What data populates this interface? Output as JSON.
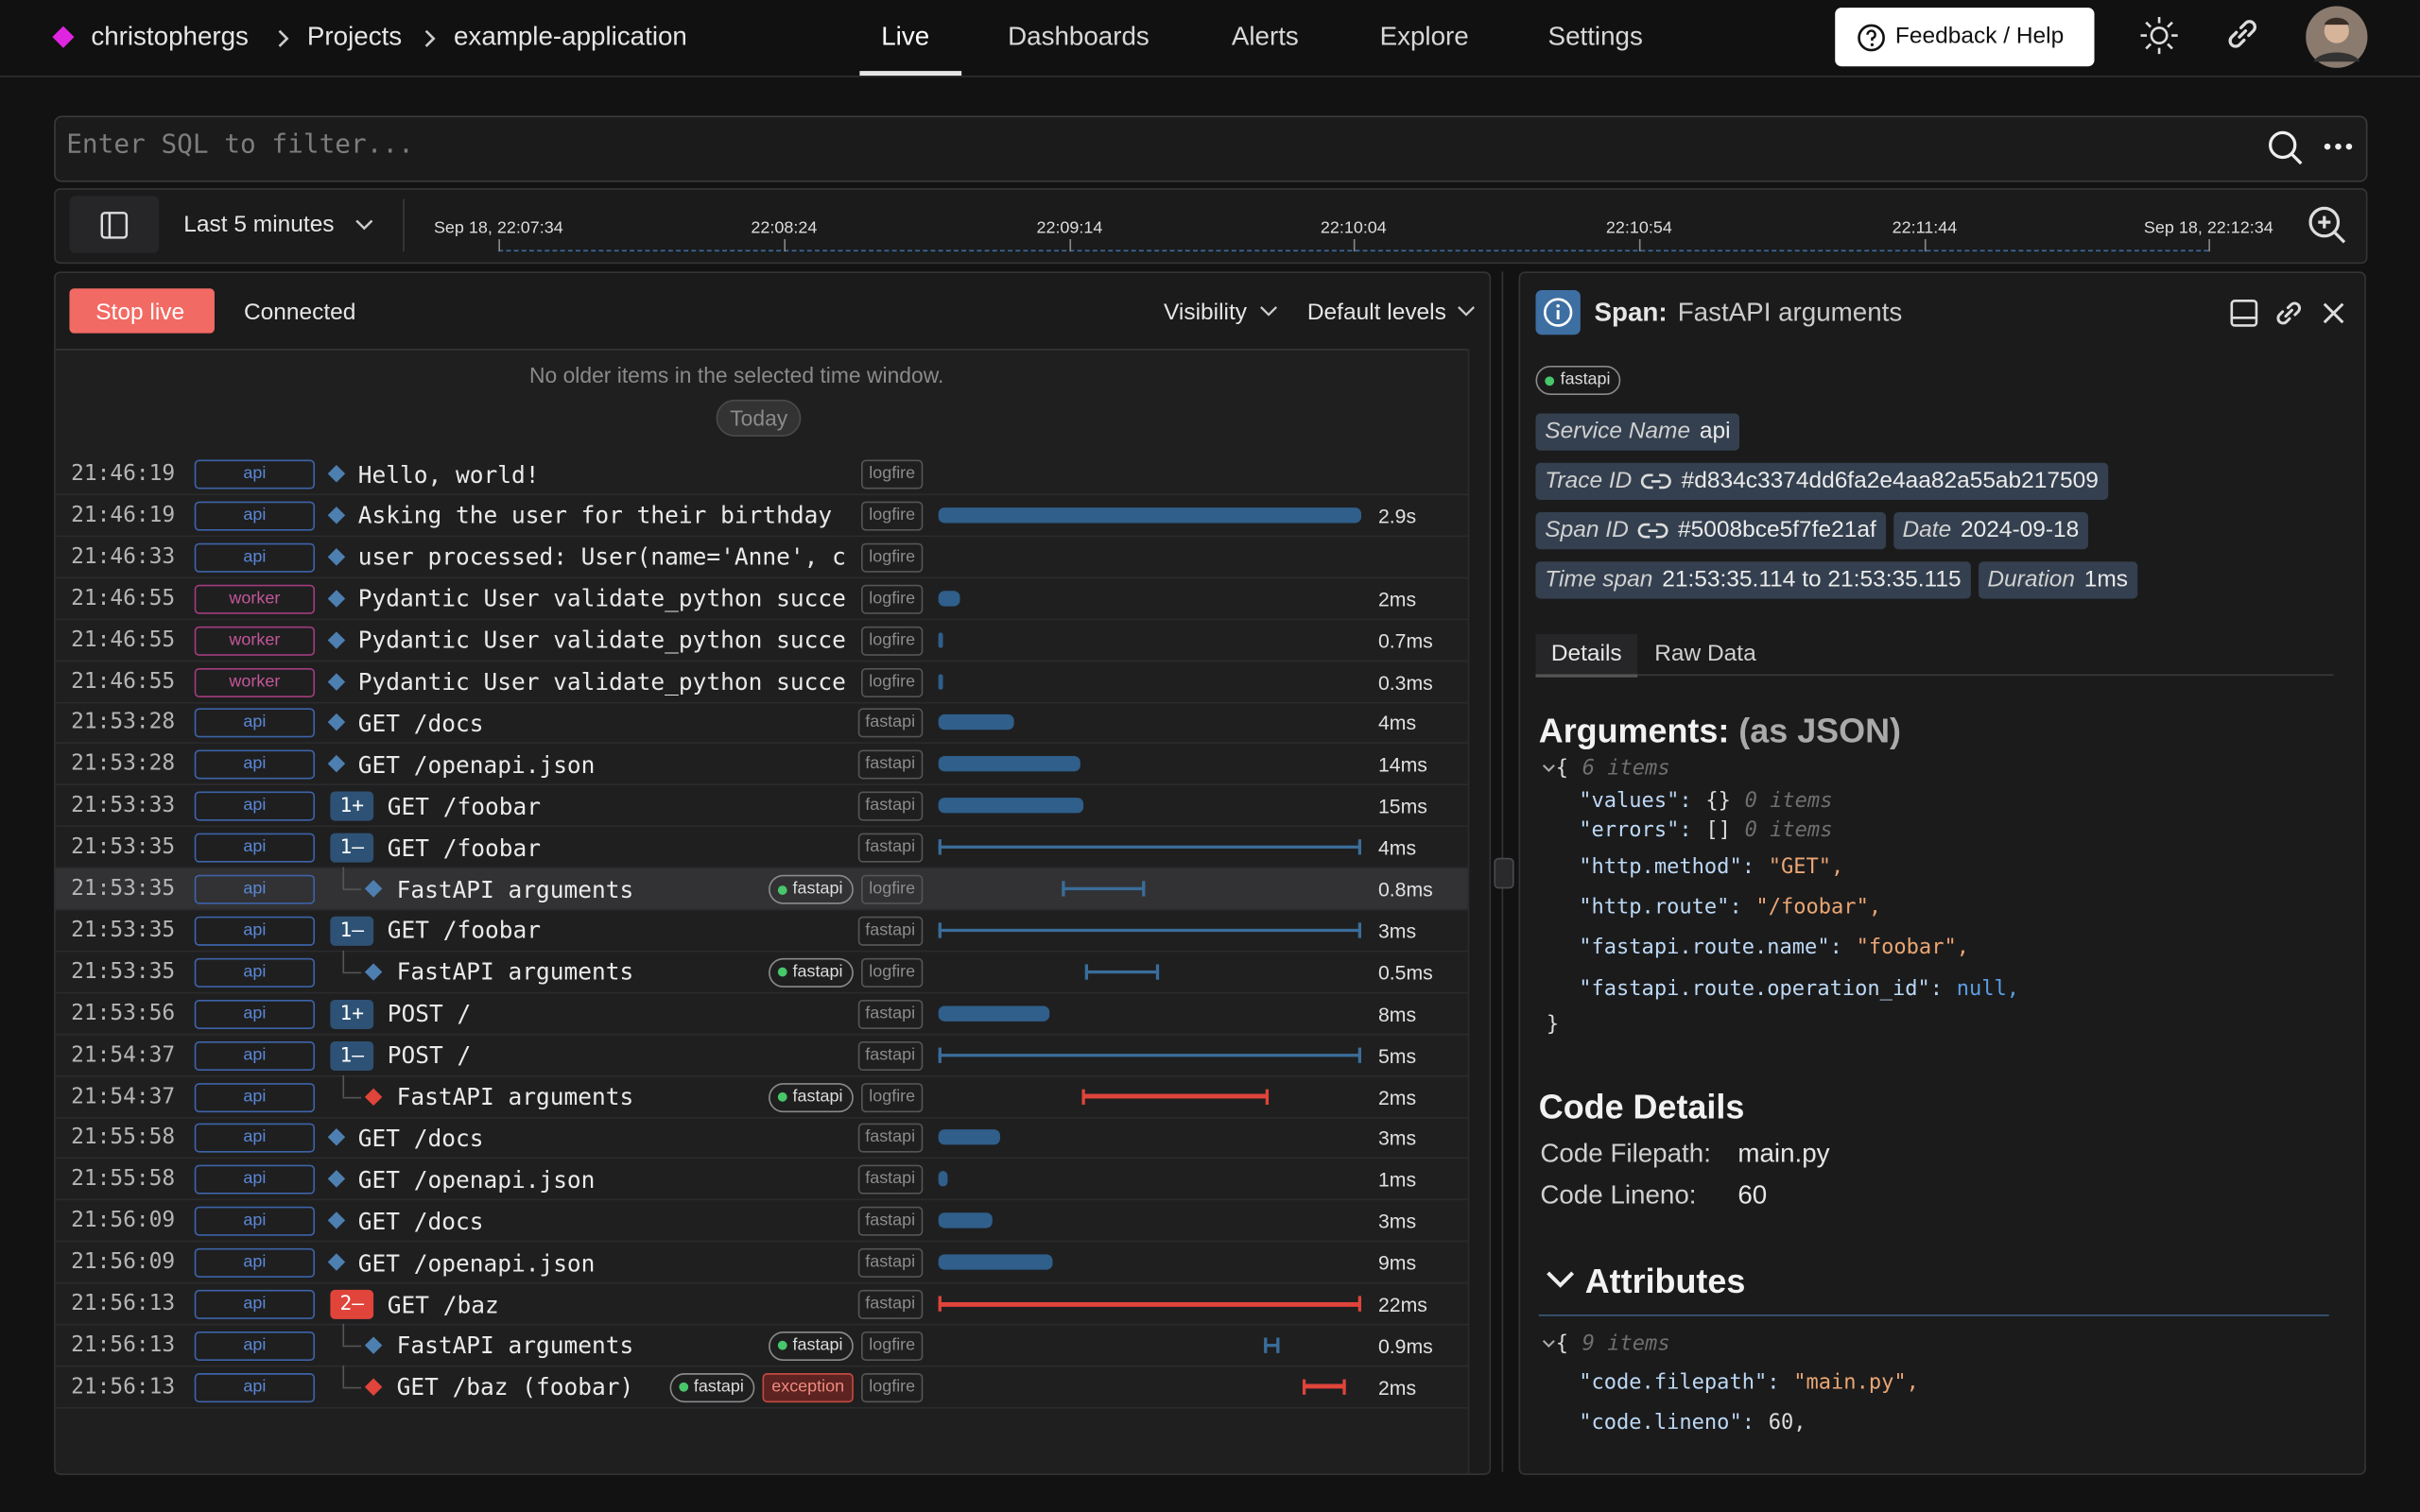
{
  "nav": {
    "org": "christophergs",
    "projects": "Projects",
    "app": "example-application",
    "tabs": [
      "Live",
      "Dashboards",
      "Alerts",
      "Explore",
      "Settings"
    ],
    "feedback": "Feedback / Help"
  },
  "query": {
    "placeholder": "Enter SQL to filter..."
  },
  "timeline": {
    "range": "Last 5 minutes",
    "ticks": [
      "Sep 18, 22:07:34",
      "22:08:24",
      "22:09:14",
      "22:10:04",
      "22:10:54",
      "22:11:44",
      "Sep 18, 22:12:34"
    ]
  },
  "live": {
    "stop": "Stop live",
    "status": "Connected",
    "visibility": "Visibility",
    "levels": "Default levels",
    "notice": "No older items in the selected time window.",
    "today": "Today",
    "rows": [
      {
        "time": "21:46:19",
        "service": "api",
        "message": "Hello, world!",
        "scope": "logfire"
      },
      {
        "time": "21:46:19",
        "service": "api",
        "message": "Asking the user for their birthday",
        "scope": "logfire",
        "duration": "2.9s"
      },
      {
        "time": "21:46:33",
        "service": "api",
        "message": "user processed: User(name='Anne', c",
        "scope": "logfire"
      },
      {
        "time": "21:46:55",
        "service": "worker",
        "message": "Pydantic User validate_python succe",
        "scope": "logfire",
        "duration": "2ms"
      },
      {
        "time": "21:46:55",
        "service": "worker",
        "message": "Pydantic User validate_python succe",
        "scope": "logfire",
        "duration": "0.7ms"
      },
      {
        "time": "21:46:55",
        "service": "worker",
        "message": "Pydantic User validate_python succe",
        "scope": "logfire",
        "duration": "0.3ms"
      },
      {
        "time": "21:53:28",
        "service": "api",
        "message": "GET /docs",
        "scope": "fastapi",
        "duration": "4ms"
      },
      {
        "time": "21:53:28",
        "service": "api",
        "message": "GET /openapi.json",
        "scope": "fastapi",
        "duration": "14ms"
      },
      {
        "time": "21:53:33",
        "service": "api",
        "badge": "1+",
        "message": "GET /foobar",
        "scope": "fastapi",
        "duration": "15ms"
      },
      {
        "time": "21:53:35",
        "service": "api",
        "badge": "1–",
        "message": "GET /foobar",
        "scope": "fastapi",
        "duration": "4ms"
      },
      {
        "time": "21:53:35",
        "service": "api",
        "message": "FastAPI arguments",
        "tags": [
          "fastapi"
        ],
        "scope": "logfire",
        "duration": "0.8ms"
      },
      {
        "time": "21:53:35",
        "service": "api",
        "badge": "1–",
        "message": "GET /foobar",
        "scope": "fastapi",
        "duration": "3ms"
      },
      {
        "time": "21:53:35",
        "service": "api",
        "message": "FastAPI arguments",
        "tags": [
          "fastapi"
        ],
        "scope": "logfire",
        "duration": "0.5ms"
      },
      {
        "time": "21:53:56",
        "service": "api",
        "badge": "1+",
        "message": "POST /",
        "scope": "fastapi",
        "duration": "8ms"
      },
      {
        "time": "21:54:37",
        "service": "api",
        "badge": "1–",
        "message": "POST /",
        "scope": "fastapi",
        "duration": "5ms"
      },
      {
        "time": "21:54:37",
        "service": "api",
        "message": "FastAPI arguments",
        "tags": [
          "fastapi"
        ],
        "scope": "logfire",
        "duration": "2ms"
      },
      {
        "time": "21:55:58",
        "service": "api",
        "message": "GET /docs",
        "scope": "fastapi",
        "duration": "3ms"
      },
      {
        "time": "21:55:58",
        "service": "api",
        "message": "GET /openapi.json",
        "scope": "fastapi",
        "duration": "1ms"
      },
      {
        "time": "21:56:09",
        "service": "api",
        "message": "GET /docs",
        "scope": "fastapi",
        "duration": "3ms"
      },
      {
        "time": "21:56:09",
        "service": "api",
        "message": "GET /openapi.json",
        "scope": "fastapi",
        "duration": "9ms"
      },
      {
        "time": "21:56:13",
        "service": "api",
        "badge": "2–",
        "message": "GET /baz",
        "scope": "fastapi",
        "duration": "22ms"
      },
      {
        "time": "21:56:13",
        "service": "api",
        "message": "FastAPI arguments",
        "tags": [
          "fastapi"
        ],
        "scope": "logfire",
        "duration": "0.9ms"
      },
      {
        "time": "21:56:13",
        "service": "api",
        "message": "GET /baz (foobar)",
        "tags": [
          "fastapi"
        ],
        "level": "exception",
        "scope": "logfire",
        "duration": "2ms"
      }
    ]
  },
  "span": {
    "label": "Span:",
    "name": "FastAPI arguments",
    "tag": "fastapi",
    "fields": [
      {
        "label": "Service Name",
        "value": "api"
      },
      {
        "label": "Trace ID",
        "value": "#d834c3374dd6fa2e4aa82a55ab217509"
      },
      {
        "label": "Span ID",
        "value": "#5008bce5f7fe21af"
      },
      {
        "label": "Date",
        "value": "2024-09-18"
      },
      {
        "label": "Time span",
        "value": "21:53:35.114 to 21:53:35.115"
      },
      {
        "label": "Duration",
        "value": "1ms"
      }
    ],
    "tabs": [
      "Details",
      "Raw Data"
    ],
    "arguments": {
      "title": "Arguments:",
      "subtitle": "(as JSON)",
      "open": "{",
      "count": "6 items",
      "entries": [
        {
          "k": "\"values\":",
          "v": "{}",
          "n": "0 items"
        },
        {
          "k": "\"errors\":",
          "v": "[]",
          "n": "0 items"
        },
        {
          "k": "\"http.method\":",
          "v": "\"GET\","
        },
        {
          "k": "\"http.route\":",
          "v": "\"/foobar\","
        },
        {
          "k": "\"fastapi.route.name\":",
          "v": "\"foobar\","
        },
        {
          "k": "\"fastapi.route.operation_id\":",
          "v": "null,"
        }
      ],
      "close": "}"
    },
    "code": {
      "title": "Code Details",
      "rows": [
        {
          "label": "Code Filepath:",
          "value": "main.py"
        },
        {
          "label": "Code Lineno:",
          "value": "60"
        }
      ]
    },
    "attributes": {
      "title": "Attributes",
      "open": "{",
      "count": "9 items",
      "entries": [
        {
          "k": "\"code.filepath\":",
          "v": "\"main.py\","
        },
        {
          "k": "\"code.lineno\":",
          "v": "60,"
        }
      ]
    }
  }
}
